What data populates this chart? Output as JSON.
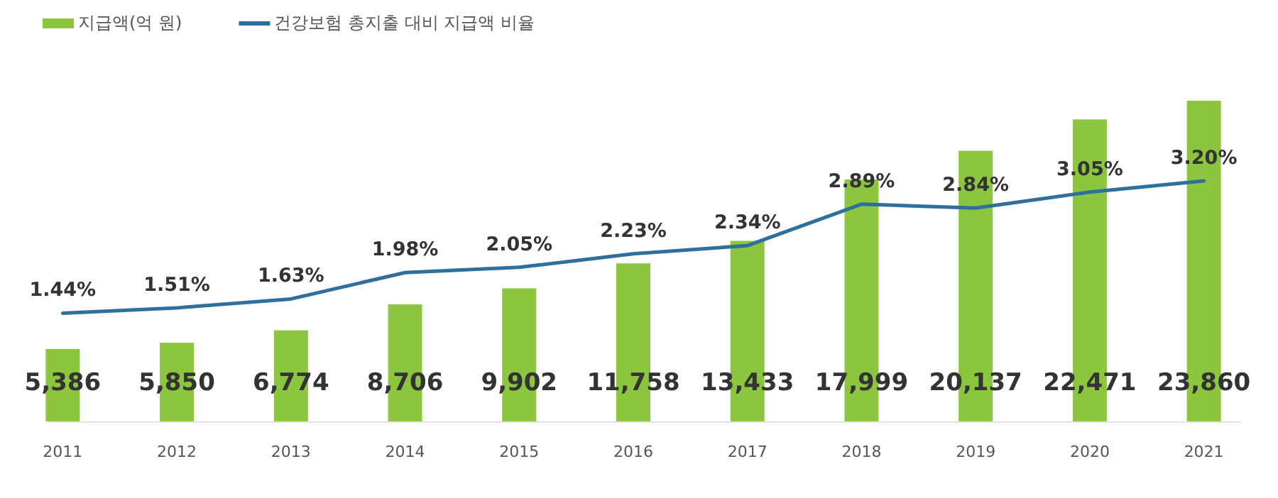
{
  "chart_data": {
    "type": "bar",
    "categories": [
      "2011",
      "2012",
      "2013",
      "2014",
      "2015",
      "2016",
      "2017",
      "2018",
      "2019",
      "2020",
      "2021"
    ],
    "series": [
      {
        "name": "지급액(억 원)",
        "color": "#8cc63f",
        "values": [
          5386,
          5850,
          6774,
          8706,
          9902,
          11758,
          13433,
          17999,
          20137,
          22471,
          23860
        ],
        "value_labels": [
          "5,386",
          "5,850",
          "6,774",
          "8,706",
          "9,902",
          "11,758",
          "13,433",
          "17,999",
          "20,137",
          "22,471",
          "23,860"
        ]
      },
      {
        "name": "건강보험 총지출 대비 지급액 비율",
        "type": "line",
        "axis": "y2",
        "color": "#2f6f9c",
        "values": [
          1.44,
          1.51,
          1.63,
          1.98,
          2.05,
          2.23,
          2.34,
          2.89,
          2.84,
          3.05,
          3.2
        ],
        "value_labels": [
          "1.44%",
          "1.51%",
          "1.63%",
          "1.98%",
          "2.05%",
          "2.23%",
          "2.34%",
          "2.89%",
          "2.84%",
          "3.05%",
          "3.20%"
        ]
      }
    ],
    "tick_labels": "x",
    "grid": false,
    "legend": "top left",
    "marker": "none"
  }
}
